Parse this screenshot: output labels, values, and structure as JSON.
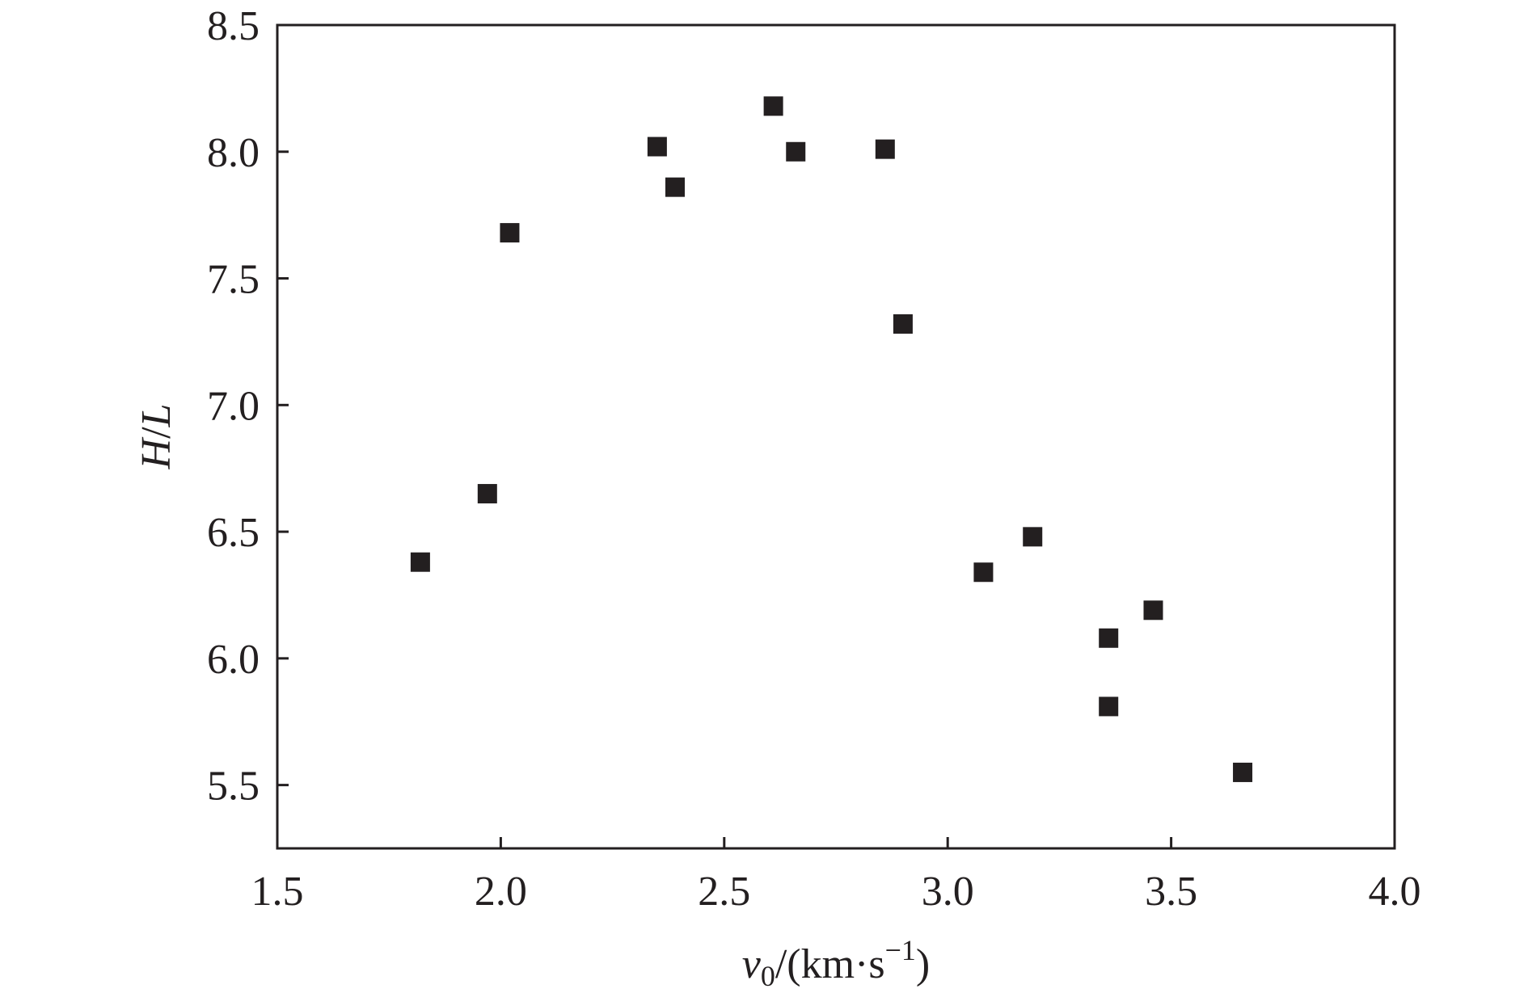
{
  "chart_data": {
    "type": "scatter",
    "title": "",
    "xlabel": {
      "var": "v",
      "sub": "0",
      "unit_open": "/(km·s",
      "sup": "−1",
      "unit_close": ")"
    },
    "ylabel": {
      "var": "H",
      "sep": "/",
      "var2": "L"
    },
    "xlim": [
      1.5,
      4.0
    ],
    "ylim": [
      5.25,
      8.5
    ],
    "xticks": [
      "1.5",
      "2.0",
      "2.5",
      "3.0",
      "3.5",
      "4.0"
    ],
    "yticks": [
      "5.5",
      "6.0",
      "6.5",
      "7.0",
      "7.5",
      "8.0",
      "8.5"
    ],
    "grid": false,
    "marker": "square",
    "marker_color": "#231f20",
    "x": [
      1.82,
      1.97,
      2.02,
      2.35,
      2.39,
      2.61,
      2.66,
      2.86,
      2.9,
      3.08,
      3.19,
      3.36,
      3.36,
      3.46,
      3.66
    ],
    "y": [
      6.38,
      6.65,
      7.68,
      8.02,
      7.86,
      8.18,
      8.0,
      8.01,
      7.32,
      6.34,
      6.48,
      6.08,
      5.81,
      6.19,
      5.55
    ]
  }
}
